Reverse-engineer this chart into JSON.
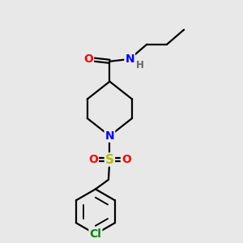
{
  "background_color": "#e8e8e8",
  "atom_colors": {
    "C": "#000000",
    "N": "#0000ff",
    "O": "#ff0000",
    "S": "#bbbb00",
    "Cl": "#008800",
    "H": "#666666"
  },
  "bond_color": "#000000",
  "bond_width": 1.6,
  "figsize": [
    3.0,
    3.0
  ],
  "dpi": 100
}
